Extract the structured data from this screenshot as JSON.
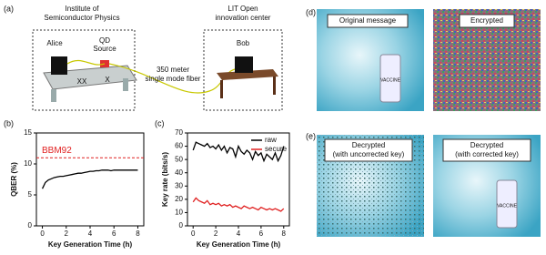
{
  "panel_a": {
    "label": "(a)",
    "alice_site": [
      "Institute of",
      "Semiconductor Physics"
    ],
    "alice": "Alice",
    "source": [
      "QD",
      "Source"
    ],
    "xx": "XX",
    "x": "X",
    "fiber": [
      "350 meter",
      "single mode fiber"
    ],
    "bob_site": [
      "LIT Open",
      "innovation center"
    ],
    "bob": "Bob"
  },
  "chart_data": [
    {
      "type": "line",
      "panel_label": "(b)",
      "x_label": "Key Generation Time (h)",
      "y_label": "QBER (%)",
      "x": [
        0,
        0.25,
        0.5,
        0.75,
        1,
        1.25,
        1.5,
        1.75,
        2,
        2.25,
        2.5,
        2.75,
        3,
        3.25,
        3.5,
        3.75,
        4,
        4.25,
        4.5,
        4.75,
        5,
        5.25,
        5.5,
        5.75,
        6,
        6.25,
        6.5,
        6.75,
        7,
        7.25,
        7.5,
        7.75,
        8
      ],
      "series": [
        {
          "color": "#000000",
          "values": [
            6.0,
            7.0,
            7.4,
            7.6,
            7.8,
            7.9,
            8.0,
            8.0,
            8.1,
            8.2,
            8.3,
            8.4,
            8.5,
            8.5,
            8.6,
            8.7,
            8.8,
            8.8,
            8.9,
            8.9,
            9.0,
            9.0,
            9.0,
            8.9,
            9.0,
            9.0,
            9.0,
            9.0,
            9.0,
            9.0,
            9.0,
            9.0,
            9.0
          ]
        }
      ],
      "reference_line": {
        "value": 11,
        "label": "BBM92",
        "color": "#e02020"
      },
      "xlim": [
        -0.5,
        8.5
      ],
      "xticks": [
        0,
        2,
        4,
        6,
        8
      ],
      "ylim": [
        0,
        15
      ],
      "yticks": [
        0,
        5,
        10,
        15
      ]
    },
    {
      "type": "line",
      "panel_label": "(c)",
      "x_label": "Key Generation Time (h)",
      "y_label": "Key rate (bits/s)",
      "x": [
        0,
        0.25,
        0.5,
        0.75,
        1,
        1.25,
        1.5,
        1.75,
        2,
        2.25,
        2.5,
        2.75,
        3,
        3.25,
        3.5,
        3.75,
        4,
        4.25,
        4.5,
        4.75,
        5,
        5.25,
        5.5,
        5.75,
        6,
        6.25,
        6.5,
        6.75,
        7,
        7.25,
        7.5,
        7.75,
        8
      ],
      "series": [
        {
          "name": "raw",
          "color": "#000000",
          "values": [
            57,
            63,
            62,
            61,
            60,
            62,
            59,
            60,
            58,
            61,
            57,
            60,
            55,
            59,
            58,
            52,
            60,
            56,
            54,
            57,
            55,
            50,
            56,
            53,
            55,
            49,
            54,
            52,
            50,
            55,
            49,
            53,
            60
          ]
        },
        {
          "name": "secure",
          "color": "#e02020",
          "values": [
            18,
            21,
            19,
            18,
            17,
            19,
            16,
            17,
            16,
            17,
            15,
            16,
            15,
            16,
            14,
            15,
            14,
            13,
            15,
            14,
            13,
            14,
            13,
            12,
            14,
            13,
            12,
            13,
            12,
            13,
            12,
            11,
            13
          ]
        }
      ],
      "legend": "upper right",
      "xlim": [
        -0.5,
        8.5
      ],
      "xticks": [
        0,
        2,
        4,
        6,
        8
      ],
      "ylim": [
        0,
        70
      ],
      "yticks": [
        0,
        10,
        20,
        30,
        40,
        50,
        60,
        70
      ]
    }
  ],
  "panel_d": {
    "label": "(d)",
    "left": "Original message",
    "right": "Encrypted",
    "vial": "VACCINE"
  },
  "panel_e": {
    "label": "(e)",
    "left": [
      "Decrypted",
      "(with uncorrected key)"
    ],
    "right": [
      "Decrypted",
      "(with corrected key)"
    ],
    "vial": "VACCINE"
  }
}
